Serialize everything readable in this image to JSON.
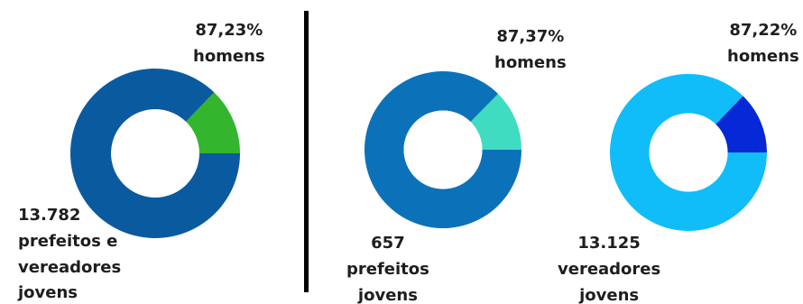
{
  "colors": {
    "divider": "#000000",
    "text": "#1e1e1e",
    "hole": "#ffffff"
  },
  "chart_data": [
    {
      "type": "pie",
      "style": "donut",
      "slices": [
        {
          "label": "homens",
          "percent": 87.23,
          "color": "#0a5aa0"
        },
        {
          "label": "",
          "percent": 12.77,
          "color": "#33b52d"
        }
      ],
      "labels": {
        "percent_text": "87,23%",
        "percent_word": "homens",
        "count": "13.782",
        "description_lines": [
          "prefeitos e",
          "vereadores",
          "jovens"
        ]
      }
    },
    {
      "type": "pie",
      "style": "donut",
      "slices": [
        {
          "label": "homens",
          "percent": 87.37,
          "color": "#0b72b9"
        },
        {
          "label": "",
          "percent": 12.63,
          "color": "#3fdcc2"
        }
      ],
      "labels": {
        "percent_text": "87,37%",
        "percent_word": "homens",
        "count": "657",
        "description_lines": [
          "prefeitos",
          "jovens"
        ]
      }
    },
    {
      "type": "pie",
      "style": "donut",
      "slices": [
        {
          "label": "homens",
          "percent": 87.22,
          "color": "#10bdf8"
        },
        {
          "label": "",
          "percent": 12.78,
          "color": "#0628d6"
        }
      ],
      "labels": {
        "percent_text": "87,22%",
        "percent_word": "homens",
        "count": "13.125",
        "description_lines": [
          "vereadores",
          "jovens"
        ]
      }
    }
  ]
}
